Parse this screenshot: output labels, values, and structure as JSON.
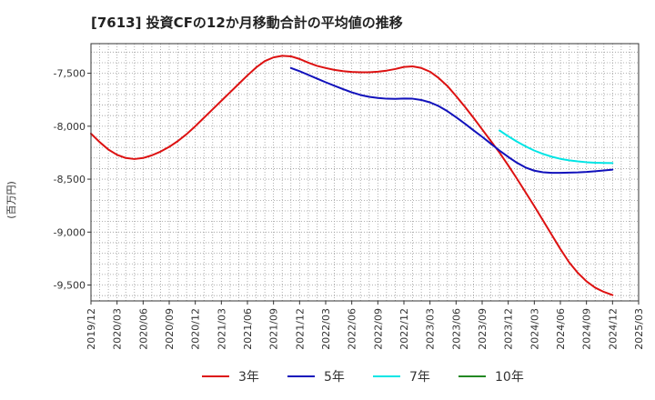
{
  "chart_data": {
    "type": "line",
    "title": "[7613]  投資CFの12か月移動合計の平均値の推移",
    "ylabel": "(百万円)",
    "xlabel": "",
    "ylim": [
      -9650,
      -7220
    ],
    "yticks": [
      -7500,
      -8000,
      -8500,
      -9000,
      -9500
    ],
    "ytick_labels": [
      "-7,500",
      "-8,000",
      "-8,500",
      "-9,000",
      "-9,500"
    ],
    "x_range": [
      "2019-12",
      "2025-03"
    ],
    "xtick_labels": [
      "2019/12",
      "2020/03",
      "2020/06",
      "2020/09",
      "2020/12",
      "2021/03",
      "2021/06",
      "2021/09",
      "2021/12",
      "2022/03",
      "2022/06",
      "2022/09",
      "2022/12",
      "2023/03",
      "2023/06",
      "2023/09",
      "2023/12",
      "2024/03",
      "2024/06",
      "2024/09",
      "2024/12",
      "2025/03"
    ],
    "grid": true,
    "legend_position": "bottom",
    "series": [
      {
        "name": "3年",
        "color": "#dd1111",
        "points": [
          [
            "2019-12",
            -8070
          ],
          [
            "2020-01",
            -8150
          ],
          [
            "2020-02",
            -8220
          ],
          [
            "2020-03",
            -8270
          ],
          [
            "2020-04",
            -8300
          ],
          [
            "2020-05",
            -8310
          ],
          [
            "2020-06",
            -8300
          ],
          [
            "2020-07",
            -8275
          ],
          [
            "2020-08",
            -8240
          ],
          [
            "2020-09",
            -8195
          ],
          [
            "2020-10",
            -8140
          ],
          [
            "2020-11",
            -8075
          ],
          [
            "2020-12",
            -8000
          ],
          [
            "2021-01",
            -7920
          ],
          [
            "2021-02",
            -7840
          ],
          [
            "2021-03",
            -7760
          ],
          [
            "2021-04",
            -7680
          ],
          [
            "2021-05",
            -7600
          ],
          [
            "2021-06",
            -7520
          ],
          [
            "2021-07",
            -7445
          ],
          [
            "2021-08",
            -7385
          ],
          [
            "2021-09",
            -7350
          ],
          [
            "2021-10",
            -7335
          ],
          [
            "2021-11",
            -7340
          ],
          [
            "2021-12",
            -7365
          ],
          [
            "2022-01",
            -7400
          ],
          [
            "2022-02",
            -7430
          ],
          [
            "2022-03",
            -7450
          ],
          [
            "2022-04",
            -7468
          ],
          [
            "2022-05",
            -7480
          ],
          [
            "2022-06",
            -7487
          ],
          [
            "2022-07",
            -7490
          ],
          [
            "2022-08",
            -7490
          ],
          [
            "2022-09",
            -7485
          ],
          [
            "2022-10",
            -7475
          ],
          [
            "2022-11",
            -7460
          ],
          [
            "2022-12",
            -7440
          ],
          [
            "2023-01",
            -7435
          ],
          [
            "2023-02",
            -7450
          ],
          [
            "2023-03",
            -7485
          ],
          [
            "2023-04",
            -7545
          ],
          [
            "2023-05",
            -7620
          ],
          [
            "2023-06",
            -7715
          ],
          [
            "2023-07",
            -7815
          ],
          [
            "2023-08",
            -7920
          ],
          [
            "2023-09",
            -8030
          ],
          [
            "2023-10",
            -8140
          ],
          [
            "2023-11",
            -8250
          ],
          [
            "2023-12",
            -8370
          ],
          [
            "2024-01",
            -8495
          ],
          [
            "2024-02",
            -8625
          ],
          [
            "2024-03",
            -8755
          ],
          [
            "2024-04",
            -8890
          ],
          [
            "2024-05",
            -9025
          ],
          [
            "2024-06",
            -9160
          ],
          [
            "2024-07",
            -9285
          ],
          [
            "2024-08",
            -9385
          ],
          [
            "2024-09",
            -9465
          ],
          [
            "2024-10",
            -9525
          ],
          [
            "2024-11",
            -9565
          ],
          [
            "2024-12",
            -9595
          ]
        ]
      },
      {
        "name": "5年",
        "color": "#1111bb",
        "points": [
          [
            "2021-11",
            -7450
          ],
          [
            "2021-12",
            -7480
          ],
          [
            "2022-01",
            -7515
          ],
          [
            "2022-02",
            -7550
          ],
          [
            "2022-03",
            -7585
          ],
          [
            "2022-04",
            -7618
          ],
          [
            "2022-05",
            -7650
          ],
          [
            "2022-06",
            -7680
          ],
          [
            "2022-07",
            -7705
          ],
          [
            "2022-08",
            -7722
          ],
          [
            "2022-09",
            -7733
          ],
          [
            "2022-10",
            -7740
          ],
          [
            "2022-11",
            -7742
          ],
          [
            "2022-12",
            -7738
          ],
          [
            "2023-01",
            -7740
          ],
          [
            "2023-02",
            -7752
          ],
          [
            "2023-03",
            -7775
          ],
          [
            "2023-04",
            -7810
          ],
          [
            "2023-05",
            -7858
          ],
          [
            "2023-06",
            -7915
          ],
          [
            "2023-07",
            -7975
          ],
          [
            "2023-08",
            -8038
          ],
          [
            "2023-09",
            -8100
          ],
          [
            "2023-10",
            -8165
          ],
          [
            "2023-11",
            -8230
          ],
          [
            "2023-12",
            -8290
          ],
          [
            "2024-01",
            -8345
          ],
          [
            "2024-02",
            -8390
          ],
          [
            "2024-03",
            -8420
          ],
          [
            "2024-04",
            -8435
          ],
          [
            "2024-05",
            -8440
          ],
          [
            "2024-06",
            -8440
          ],
          [
            "2024-07",
            -8438
          ],
          [
            "2024-08",
            -8436
          ],
          [
            "2024-09",
            -8432
          ],
          [
            "2024-10",
            -8425
          ],
          [
            "2024-11",
            -8418
          ],
          [
            "2024-12",
            -8410
          ]
        ]
      },
      {
        "name": "7年",
        "color": "#00e5e5",
        "points": [
          [
            "2023-11",
            -8040
          ],
          [
            "2023-12",
            -8095
          ],
          [
            "2024-01",
            -8145
          ],
          [
            "2024-02",
            -8190
          ],
          [
            "2024-03",
            -8230
          ],
          [
            "2024-04",
            -8262
          ],
          [
            "2024-05",
            -8288
          ],
          [
            "2024-06",
            -8308
          ],
          [
            "2024-07",
            -8322
          ],
          [
            "2024-08",
            -8332
          ],
          [
            "2024-09",
            -8340
          ],
          [
            "2024-10",
            -8345
          ],
          [
            "2024-11",
            -8347
          ],
          [
            "2024-12",
            -8348
          ]
        ]
      },
      {
        "name": "10年",
        "color": "#228822",
        "points": []
      }
    ]
  }
}
